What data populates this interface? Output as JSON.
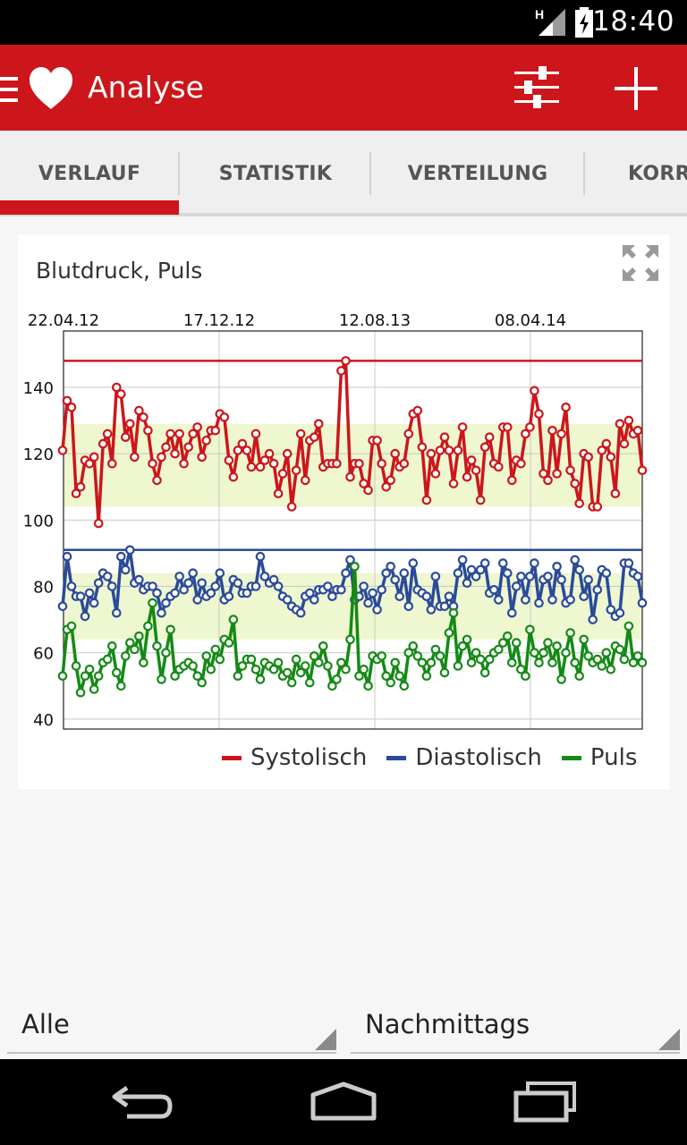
{
  "status_bar": {
    "time": "18:40",
    "network_label": "H"
  },
  "app_bar": {
    "title": "Analyse"
  },
  "tabs": [
    {
      "label": "VERLAUF",
      "selected": true
    },
    {
      "label": "STATISTIK",
      "selected": false
    },
    {
      "label": "VERTEILUNG",
      "selected": false
    },
    {
      "label": "KORR",
      "selected": false
    }
  ],
  "chart": {
    "title": "Blutdruck, Puls"
  },
  "chart_data": {
    "type": "line",
    "title": "Blutdruck, Puls",
    "x_tick_labels": [
      "22.04.12",
      "17.12.12",
      "12.08.13",
      "08.04.14"
    ],
    "y_ticks": [
      140,
      120,
      100,
      80,
      60,
      40
    ],
    "ylim": [
      37,
      157
    ],
    "grid": true,
    "legend_position": "bottom-right",
    "target_bands": [
      {
        "series": "Systolisch",
        "range": [
          104,
          129
        ],
        "color": "#eef7cf"
      },
      {
        "series": "Diastolisch",
        "range": [
          64,
          84
        ],
        "color": "#eef7cf"
      }
    ],
    "threshold_lines": [
      {
        "series": "Systolisch",
        "value": 148,
        "color": "#cc161b"
      },
      {
        "series": "Diastolisch",
        "value": 91,
        "color": "#2a4a9a"
      }
    ],
    "series": [
      {
        "name": "Systolisch",
        "color": "#cc161b",
        "values": [
          121,
          136,
          134,
          108,
          110,
          118,
          117,
          119,
          99,
          123,
          126,
          117,
          140,
          138,
          125,
          129,
          119,
          133,
          131,
          127,
          117,
          112,
          119,
          122,
          126,
          120,
          126,
          117,
          122,
          126,
          128,
          119,
          124,
          127,
          127,
          132,
          131,
          118,
          113,
          121,
          123,
          121,
          116,
          126,
          116,
          118,
          120,
          117,
          108,
          114,
          120,
          104,
          115,
          126,
          112,
          124,
          125,
          129,
          116,
          117,
          117,
          117,
          145,
          148,
          113,
          117,
          117,
          111,
          109,
          124,
          124,
          117,
          110,
          112,
          120,
          116,
          117,
          126,
          132,
          133,
          122,
          106,
          120,
          114,
          121,
          125,
          121,
          111,
          121,
          128,
          113,
          118,
          115,
          106,
          122,
          125,
          117,
          116,
          128,
          128,
          112,
          118,
          117,
          126,
          128,
          139,
          132,
          114,
          112,
          127,
          114,
          126,
          134,
          115,
          111,
          105,
          120,
          119,
          104,
          104,
          121,
          123,
          119,
          108,
          129,
          123,
          130,
          126,
          127,
          115
        ]
      },
      {
        "name": "Diastolisch",
        "color": "#2a4a9a",
        "values": [
          74,
          89,
          80,
          77,
          77,
          71,
          78,
          75,
          81,
          84,
          83,
          80,
          72,
          89,
          85,
          91,
          81,
          82,
          79,
          80,
          80,
          78,
          72,
          75,
          77,
          78,
          83,
          79,
          81,
          84,
          76,
          81,
          77,
          78,
          80,
          84,
          76,
          77,
          82,
          81,
          78,
          78,
          80,
          80,
          89,
          83,
          81,
          82,
          80,
          77,
          76,
          74,
          73,
          72,
          77,
          78,
          76,
          79,
          79,
          80,
          77,
          79,
          79,
          84,
          88,
          76,
          77,
          80,
          75,
          78,
          73,
          79,
          84,
          86,
          82,
          77,
          84,
          74,
          87,
          79,
          78,
          77,
          73,
          83,
          74,
          74,
          77,
          74,
          84,
          88,
          81,
          85,
          83,
          85,
          87,
          78,
          79,
          76,
          87,
          84,
          72,
          80,
          83,
          76,
          83,
          87,
          75,
          82,
          83,
          76,
          86,
          82,
          75,
          76,
          88,
          85,
          77,
          82,
          70,
          79,
          85,
          84,
          73,
          71,
          72,
          87,
          87,
          84,
          83,
          75
        ]
      },
      {
        "name": "Puls",
        "color": "#148a14",
        "values": [
          53,
          67,
          68,
          56,
          48,
          53,
          55,
          49,
          53,
          57,
          58,
          62,
          54,
          50,
          59,
          63,
          61,
          65,
          57,
          68,
          75,
          62,
          52,
          60,
          67,
          53,
          55,
          56,
          57,
          56,
          53,
          51,
          59,
          55,
          61,
          58,
          64,
          63,
          70,
          53,
          56,
          58,
          58,
          55,
          52,
          57,
          56,
          55,
          57,
          53,
          54,
          51,
          58,
          54,
          56,
          51,
          59,
          57,
          62,
          56,
          50,
          52,
          57,
          55,
          64,
          86,
          53,
          55,
          50,
          59,
          58,
          59,
          53,
          51,
          57,
          53,
          50,
          60,
          62,
          59,
          57,
          53,
          57,
          61,
          59,
          54,
          66,
          72,
          56,
          62,
          64,
          57,
          60,
          58,
          54,
          58,
          60,
          61,
          63,
          65,
          57,
          63,
          55,
          53,
          67,
          60,
          57,
          60,
          63,
          57,
          62,
          52,
          60,
          66,
          57,
          53,
          64,
          59,
          57,
          58,
          56,
          60,
          55,
          62,
          61,
          58,
          68,
          57,
          59,
          57
        ]
      }
    ]
  },
  "bottom": {
    "left_spinner": "Alle",
    "right_spinner": "Nachmittags"
  }
}
